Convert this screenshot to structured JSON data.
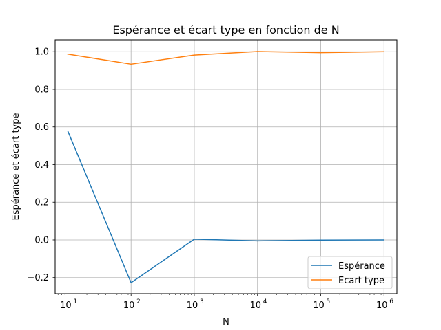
{
  "chart_data": {
    "type": "line",
    "title": "Espérance et écart type en fonction de N",
    "xlabel": "N",
    "ylabel": "Espérance et écart type",
    "x_scale": "log",
    "x": [
      10,
      100,
      1000,
      10000,
      100000,
      1000000
    ],
    "x_tick_labels": [
      {
        "base": "10",
        "exp": "1"
      },
      {
        "base": "10",
        "exp": "2"
      },
      {
        "base": "10",
        "exp": "3"
      },
      {
        "base": "10",
        "exp": "4"
      },
      {
        "base": "10",
        "exp": "5"
      },
      {
        "base": "10",
        "exp": "6"
      }
    ],
    "y_ticks": [
      -0.2,
      0.0,
      0.2,
      0.4,
      0.6,
      0.8,
      1.0
    ],
    "y_tick_labels": [
      "−0.2",
      "0.0",
      "0.2",
      "0.4",
      "0.6",
      "0.8",
      "1.0"
    ],
    "xlim": [
      6.3,
      1600000.0
    ],
    "ylim": [
      -0.285,
      1.063
    ],
    "grid": true,
    "legend_position": "lower-right",
    "series": [
      {
        "name": "Espérance",
        "color": "#1f77b4",
        "values": [
          0.578,
          -0.227,
          0.004,
          -0.005,
          -0.001,
          0.0
        ]
      },
      {
        "name": "Ecart type",
        "color": "#ff7f0e",
        "values": [
          0.987,
          0.934,
          0.982,
          1.001,
          0.995,
          1.0
        ]
      }
    ]
  }
}
